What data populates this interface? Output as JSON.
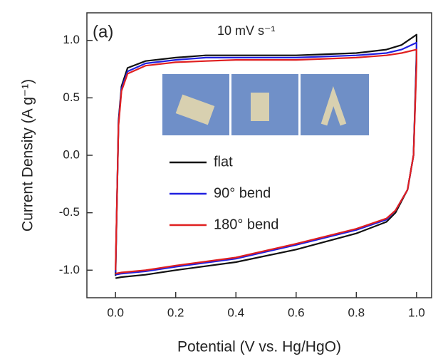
{
  "chart_data": {
    "type": "line",
    "title": "(a)",
    "subtitle": "10 mV s⁻¹",
    "x_label": "Potential (V vs. Hg/HgO)",
    "y_label": "Current Density (A g⁻¹)",
    "x": [
      0,
      0.01,
      0.02,
      0.04,
      0.1,
      0.2,
      0.3,
      0.4,
      0.5,
      0.6,
      0.7,
      0.8,
      0.9,
      0.95,
      1.0,
      1.0,
      0.99,
      0.97,
      0.93,
      0.9,
      0.8,
      0.6,
      0.4,
      0.2,
      0.1,
      0.02,
      0.0
    ],
    "series": [
      {
        "name": "flat",
        "color": "#111111",
        "values": [
          -1.05,
          0.3,
          0.6,
          0.76,
          0.82,
          0.85,
          0.87,
          0.87,
          0.87,
          0.87,
          0.88,
          0.89,
          0.92,
          0.96,
          1.05,
          0.9,
          0.0,
          -0.3,
          -0.5,
          -0.58,
          -0.68,
          -0.82,
          -0.93,
          -1.0,
          -1.04,
          -1.06,
          -1.07
        ]
      },
      {
        "name": "90° bend",
        "color": "#2020e0",
        "values": [
          -1.02,
          0.28,
          0.58,
          0.73,
          0.8,
          0.83,
          0.85,
          0.85,
          0.85,
          0.85,
          0.86,
          0.87,
          0.89,
          0.92,
          0.98,
          0.85,
          0.0,
          -0.3,
          -0.48,
          -0.56,
          -0.65,
          -0.78,
          -0.9,
          -0.97,
          -1.01,
          -1.03,
          -1.04
        ]
      },
      {
        "name": "180° bend",
        "color": "#e02020",
        "values": [
          -1.0,
          0.26,
          0.56,
          0.71,
          0.78,
          0.81,
          0.82,
          0.83,
          0.83,
          0.83,
          0.84,
          0.85,
          0.87,
          0.89,
          0.92,
          0.8,
          0.0,
          -0.3,
          -0.48,
          -0.55,
          -0.64,
          -0.77,
          -0.89,
          -0.96,
          -1.0,
          -1.02,
          -1.03
        ]
      }
    ],
    "xlim": [
      -0.095,
      1.05
    ],
    "ylim": [
      -1.24,
      1.24
    ],
    "xticks": [
      {
        "value": 0,
        "label": "0.0"
      },
      0.2,
      0.4,
      0.6,
      0.8,
      {
        "value": 1,
        "label": "1.0"
      }
    ],
    "yticks": [
      {
        "value": -1,
        "label": "-1.0"
      },
      -0.5,
      {
        "value": 0,
        "label": "0.0"
      },
      0.5,
      {
        "value": 1,
        "label": "1.0"
      }
    ],
    "legend": "left",
    "grid": false
  }
}
